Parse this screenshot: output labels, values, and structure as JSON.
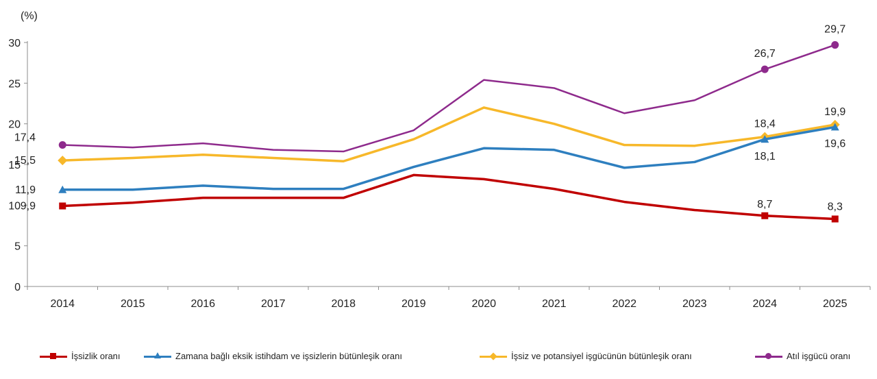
{
  "chart_data": {
    "type": "line",
    "ylabel": "(%)",
    "ylim": [
      0,
      30
    ],
    "yticks": [
      "0",
      "5",
      "10",
      "15",
      "20",
      "25",
      "30"
    ],
    "ytick_values": [
      0,
      5,
      10,
      15,
      20,
      25,
      30
    ],
    "categories": [
      "2014",
      "2015",
      "2016",
      "2017",
      "2018",
      "2019",
      "2020",
      "2021",
      "2022",
      "2023",
      "2024",
      "2025"
    ],
    "grid": false,
    "legend_position": "bottom",
    "series": [
      {
        "name": "İşsizlik oranı",
        "color": "#c00000",
        "marker": "square",
        "values": [
          9.9,
          10.3,
          10.9,
          10.9,
          10.9,
          13.7,
          13.2,
          12.0,
          10.4,
          9.4,
          8.7,
          8.3
        ],
        "labels": [
          {
            "index": 0,
            "text": "9,9"
          },
          {
            "index": 10,
            "text": "8,7"
          },
          {
            "index": 11,
            "text": "8,3"
          }
        ]
      },
      {
        "name": "Zamana bağlı eksik istihdam ve işsizlerin bütünleşik oranı",
        "color": "#2e7fbf",
        "marker": "triangle",
        "values": [
          11.9,
          11.9,
          12.4,
          12.0,
          12.0,
          14.7,
          17.0,
          16.8,
          14.6,
          15.3,
          18.1,
          19.6
        ],
        "labels": [
          {
            "index": 0,
            "text": "11,9"
          },
          {
            "index": 10,
            "text": "18,1"
          },
          {
            "index": 11,
            "text": "19,6"
          }
        ]
      },
      {
        "name": "İşsiz ve potansiyel işgücünün bütünleşik oranı",
        "color": "#f7b82a",
        "marker": "diamond",
        "values": [
          15.5,
          15.8,
          16.2,
          15.8,
          15.4,
          18.1,
          22.0,
          20.0,
          17.4,
          17.3,
          18.4,
          19.9
        ],
        "labels": [
          {
            "index": 0,
            "text": "15,5"
          },
          {
            "index": 10,
            "text": "18,4"
          },
          {
            "index": 11,
            "text": "19,9"
          }
        ]
      },
      {
        "name": "Atıl işgücü oranı",
        "color": "#8e2a8c",
        "marker": "circle",
        "values": [
          17.4,
          17.1,
          17.6,
          16.8,
          16.6,
          19.2,
          25.4,
          24.4,
          21.3,
          22.9,
          26.7,
          29.7
        ],
        "labels": [
          {
            "index": 0,
            "text": "17,4"
          },
          {
            "index": 10,
            "text": "26,7"
          },
          {
            "index": 11,
            "text": "29,7"
          }
        ]
      }
    ]
  }
}
